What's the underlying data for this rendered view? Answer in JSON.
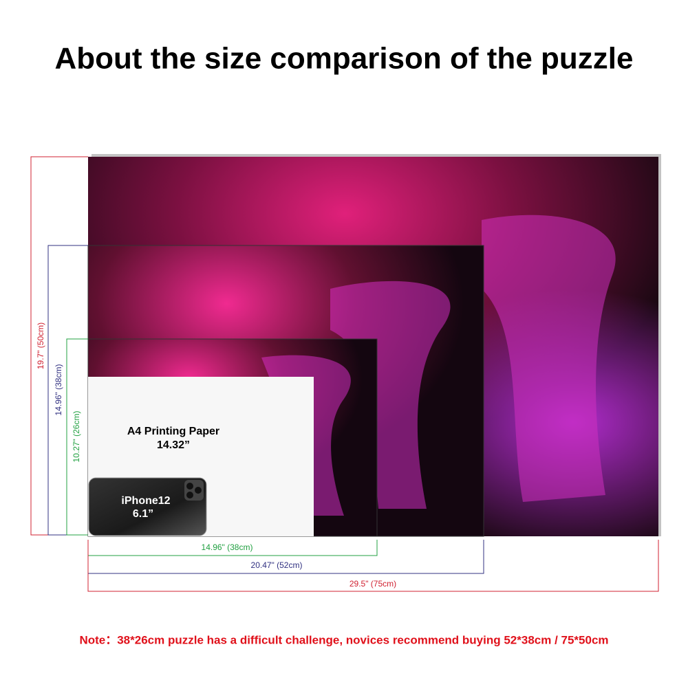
{
  "header": {
    "title": "About the size comparison of the puzzle"
  },
  "heights": [
    {
      "label": "19.7\" (50cm)"
    },
    {
      "label": "14.96\" (38cm)"
    },
    {
      "label": "10.27\" (26cm)"
    }
  ],
  "widths": [
    {
      "label": "14.96\" (38cm)"
    },
    {
      "label": "20.47\" (52cm)"
    },
    {
      "label": "29.5\" (75cm)"
    }
  ],
  "paper": {
    "name": "A4 Printing Paper",
    "size": "14.32”"
  },
  "phone": {
    "name": "iPhone12",
    "size": "6.1”"
  },
  "note": "Note：38*26cm puzzle has a difficult challenge, novices recommend buying 52*38cm / 75*50cm"
}
